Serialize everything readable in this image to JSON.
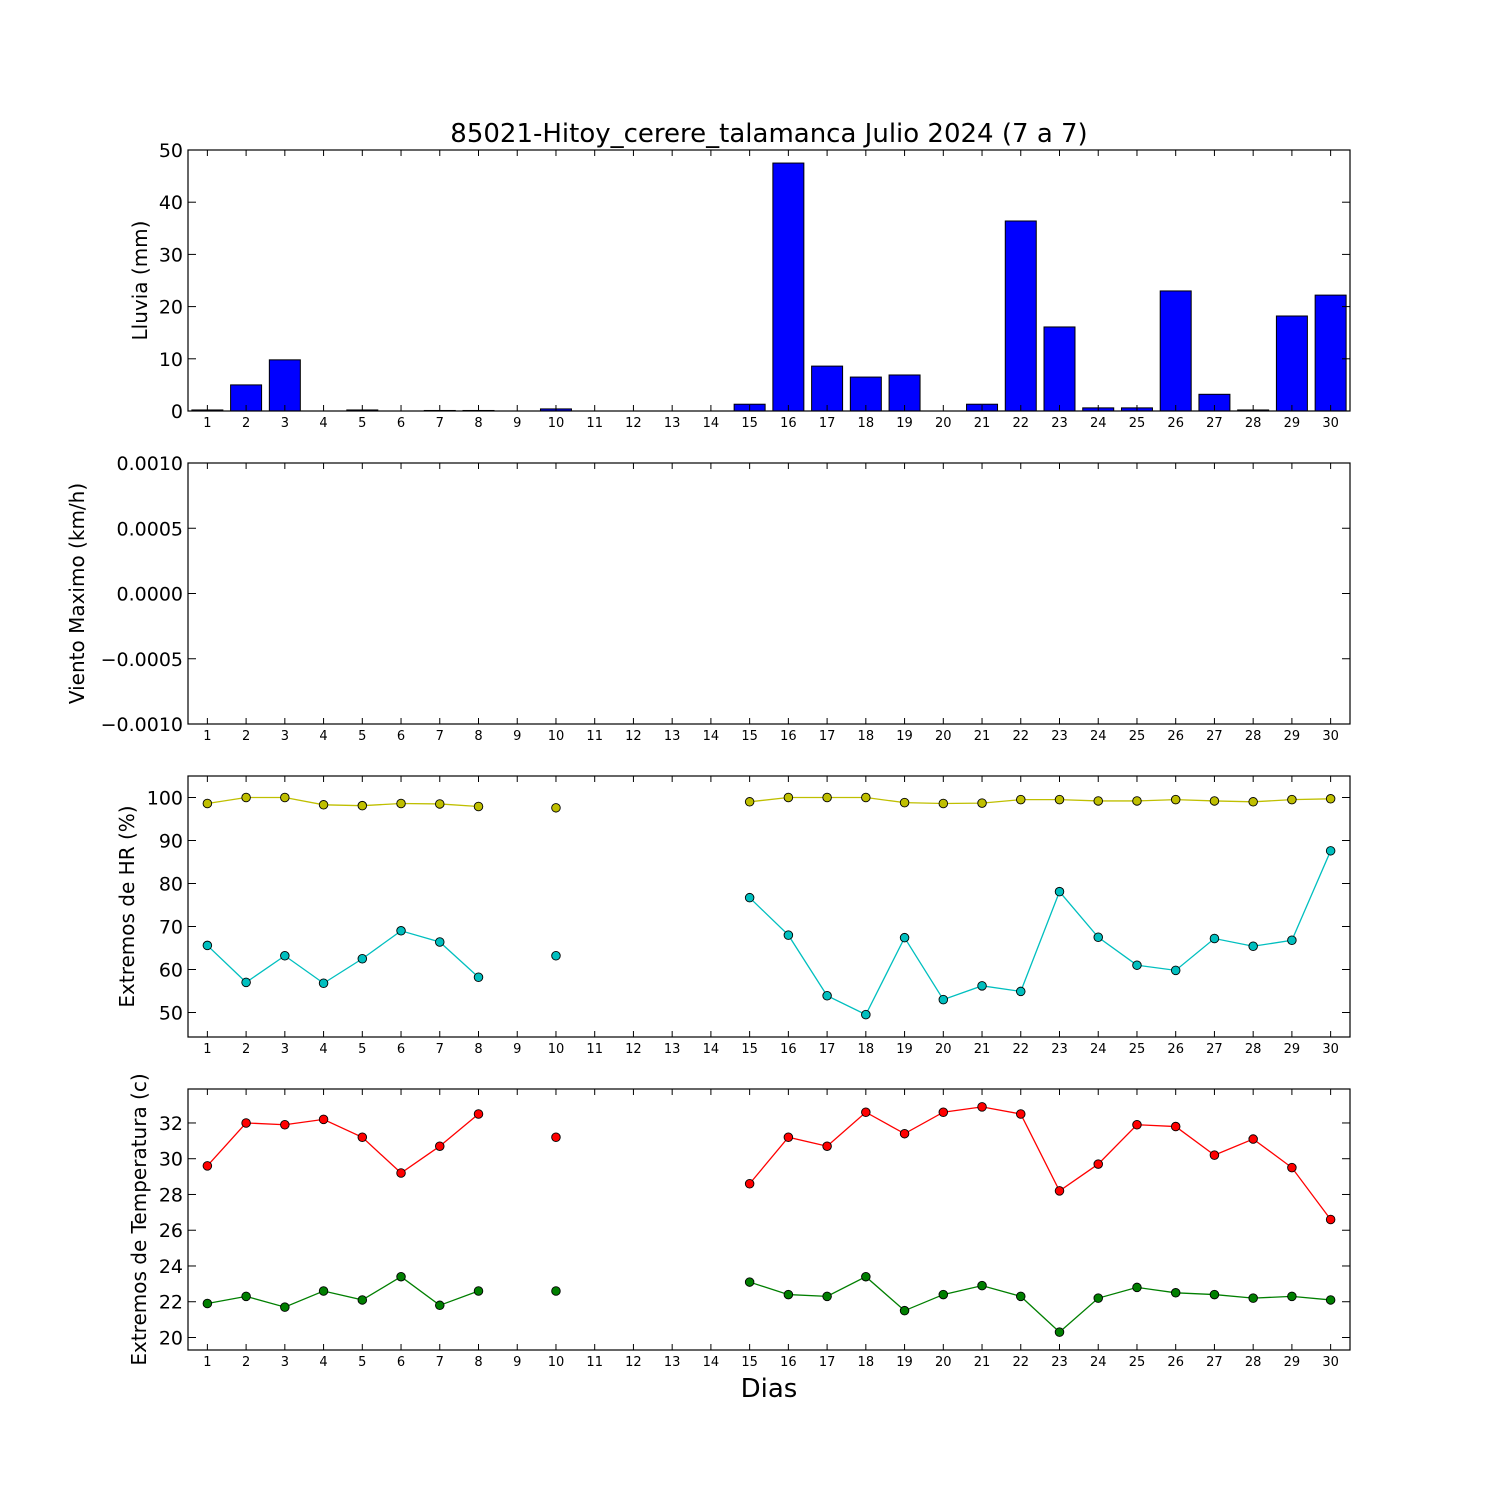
{
  "title": "85021-Hitoy_cerere_talamanca Julio 2024  (7 a 7)",
  "xlabel": "Dias",
  "days": [
    1,
    2,
    3,
    4,
    5,
    6,
    7,
    8,
    9,
    10,
    11,
    12,
    13,
    14,
    15,
    16,
    17,
    18,
    19,
    20,
    21,
    22,
    23,
    24,
    25,
    26,
    27,
    28,
    29,
    30
  ],
  "chart_data": [
    {
      "type": "bar",
      "ylabel": "Lluvia (mm)",
      "ylim": [
        0,
        50
      ],
      "yticks": [
        "0",
        "10",
        "20",
        "30",
        "40",
        "50"
      ],
      "ytick_values": [
        0,
        10,
        20,
        30,
        40,
        50
      ],
      "grid": false,
      "series": [
        {
          "color": "#0000ff",
          "values": [
            0.2,
            5.0,
            9.8,
            0,
            0.2,
            0,
            0.1,
            0.1,
            0,
            0.4,
            0,
            0,
            0,
            0,
            1.3,
            47.5,
            8.6,
            6.5,
            6.9,
            0,
            1.3,
            36.4,
            16.1,
            0.6,
            0.6,
            23.0,
            3.2,
            0.2,
            18.2,
            22.2
          ]
        }
      ]
    },
    {
      "type": "line",
      "ylabel": "Viento Maximo (km/h)",
      "ylim": [
        -0.001,
        0.001
      ],
      "yticks": [
        "−0.0010",
        "−0.0005",
        "0.0000",
        "0.0005",
        "0.0010"
      ],
      "ytick_values": [
        -0.001,
        -0.0005,
        0,
        0.0005,
        0.001
      ],
      "grid": false,
      "series": []
    },
    {
      "type": "line",
      "ylabel": "Extremos de HR (%)",
      "ylim": [
        44.3,
        105
      ],
      "yticks": [
        "50",
        "60",
        "70",
        "80",
        "90",
        "100"
      ],
      "ytick_values": [
        50,
        60,
        70,
        80,
        90,
        100
      ],
      "grid": false,
      "series": [
        {
          "color": "#bfbf00",
          "values": [
            98.6,
            100,
            100,
            98.3,
            98.1,
            98.6,
            98.5,
            97.9,
            null,
            97.6,
            null,
            null,
            null,
            null,
            99.0,
            100,
            100,
            100,
            98.8,
            98.6,
            98.7,
            99.5,
            99.5,
            99.2,
            99.2,
            99.5,
            99.2,
            99.0,
            99.5,
            99.7
          ]
        },
        {
          "color": "#00bfbf",
          "values": [
            65.6,
            57.0,
            63.2,
            56.8,
            62.5,
            69.0,
            66.4,
            58.2,
            null,
            63.2,
            null,
            null,
            null,
            null,
            76.7,
            68.0,
            53.9,
            49.5,
            67.4,
            53.0,
            56.2,
            54.9,
            78.1,
            67.5,
            61.0,
            59.8,
            67.2,
            65.4,
            66.8,
            87.6
          ]
        }
      ]
    },
    {
      "type": "line",
      "ylabel": "Extremos de Temperatura (c)",
      "ylim": [
        19.3,
        33.9
      ],
      "yticks": [
        "20",
        "22",
        "24",
        "26",
        "28",
        "30",
        "32"
      ],
      "ytick_values": [
        20,
        22,
        24,
        26,
        28,
        30,
        32
      ],
      "grid": false,
      "series": [
        {
          "color": "#ff0000",
          "values": [
            29.6,
            32.0,
            31.9,
            32.2,
            31.2,
            29.2,
            30.7,
            32.5,
            null,
            31.2,
            null,
            null,
            null,
            null,
            28.6,
            31.2,
            30.7,
            32.6,
            31.4,
            32.6,
            32.9,
            32.5,
            28.2,
            29.7,
            31.9,
            31.8,
            30.2,
            31.1,
            29.5,
            26.6
          ]
        },
        {
          "color": "#007f00",
          "values": [
            21.9,
            22.3,
            21.7,
            22.6,
            22.1,
            23.4,
            21.8,
            22.6,
            null,
            22.6,
            null,
            null,
            null,
            null,
            23.1,
            22.4,
            22.3,
            23.4,
            21.5,
            22.4,
            22.9,
            22.3,
            20.3,
            22.2,
            22.8,
            22.5,
            22.4,
            22.2,
            22.3,
            22.1
          ]
        }
      ]
    }
  ]
}
